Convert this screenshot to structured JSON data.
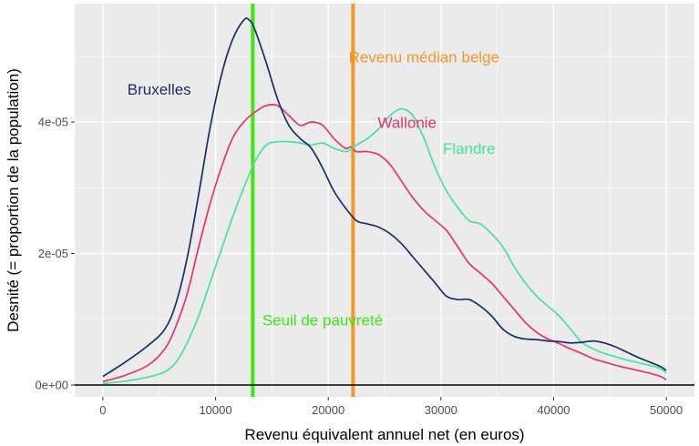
{
  "chart_data": {
    "type": "line",
    "xlabel": "Revenu équivalent annuel net (en euros)",
    "ylabel": "Desnité (= proportion de la population)",
    "xlim": [
      -2500,
      52500
    ],
    "ylim": [
      -1.8e-06,
      5.8e-05
    ],
    "x_ticks": [
      0,
      10000,
      20000,
      30000,
      40000,
      50000
    ],
    "x_tick_labels": [
      "0",
      "10000",
      "20000",
      "30000",
      "40000",
      "50000"
    ],
    "y_ticks": [
      0,
      2e-05,
      4e-05
    ],
    "y_tick_labels": [
      "0e+00",
      "2e-05",
      "4e-05"
    ],
    "grid": true,
    "background": "#ebebeb",
    "series": [
      {
        "name": "Bruxelles",
        "color": "#1b2d6b",
        "x": [
          0,
          2000,
          4000,
          5500,
          6500,
          7500,
          8500,
          9500,
          10500,
          11500,
          12500,
          13000,
          13500,
          14500,
          15500,
          16500,
          17500,
          18500,
          19500,
          20500,
          21500,
          22500,
          23500,
          24500,
          25500,
          26500,
          27500,
          28500,
          29500,
          30500,
          31500,
          32500,
          33500,
          34500,
          35500,
          36500,
          37500,
          38500,
          39500,
          40500,
          41500,
          42500,
          43500,
          44500,
          45500,
          46500,
          47500,
          48500,
          49500,
          50000
        ],
        "y": [
          1.3e-06,
          3.5e-06,
          6e-06,
          8.5e-06,
          1.25e-05,
          1.95e-05,
          2.9e-05,
          3.9e-05,
          4.7e-05,
          5.25e-05,
          5.55e-05,
          5.55e-05,
          5.4e-05,
          4.9e-05,
          4.35e-05,
          3.95e-05,
          3.75e-05,
          3.6e-05,
          3.3e-05,
          2.95e-05,
          2.7e-05,
          2.5e-05,
          2.45e-05,
          2.4e-05,
          2.3e-05,
          2.15e-05,
          1.95e-05,
          1.75e-05,
          1.55e-05,
          1.35e-05,
          1.3e-05,
          1.3e-05,
          1.2e-05,
          1.05e-05,
          8.5e-06,
          7.4e-06,
          7e-06,
          6.9e-06,
          6.7e-06,
          6.6e-06,
          6.4e-06,
          6.5e-06,
          6.7e-06,
          6.4e-06,
          5.8e-06,
          5e-06,
          4.2e-06,
          3.5e-06,
          2.8e-06,
          2.2e-06
        ]
      },
      {
        "name": "Wallonie",
        "color": "#e6336e",
        "x": [
          0,
          2000,
          4000,
          5500,
          6500,
          7500,
          8500,
          9500,
          10500,
          11500,
          12500,
          13500,
          14500,
          15500,
          16500,
          17500,
          18500,
          19500,
          20500,
          21500,
          22000,
          22500,
          23500,
          24500,
          25500,
          26500,
          27500,
          28500,
          29500,
          30500,
          31500,
          32500,
          33500,
          34500,
          35500,
          36500,
          37500,
          38500,
          39500,
          40500,
          41500,
          42500,
          43500,
          44500,
          45500,
          46500,
          47500,
          48500,
          49500,
          50000
        ],
        "y": [
          5e-07,
          1.5e-06,
          3e-06,
          5.5e-06,
          9e-06,
          1.4e-05,
          2.1e-05,
          2.75e-05,
          3.3e-05,
          3.75e-05,
          4e-05,
          4.15e-05,
          4.25e-05,
          4.25e-05,
          4.1e-05,
          3.95e-05,
          4e-05,
          3.95e-05,
          3.75e-05,
          3.6e-05,
          3.62e-05,
          3.55e-05,
          3.55e-05,
          3.5e-05,
          3.35e-05,
          3.1e-05,
          2.85e-05,
          2.65e-05,
          2.5e-05,
          2.35e-05,
          2.1e-05,
          1.85e-05,
          1.7e-05,
          1.55e-05,
          1.35e-05,
          1.15e-05,
          9.5e-06,
          8e-06,
          7e-06,
          6.3e-06,
          5.5e-06,
          4.8e-06,
          4e-06,
          3.5e-06,
          3e-06,
          2.6e-06,
          2.2e-06,
          1.8e-06,
          1.3e-06,
          8e-07
        ]
      },
      {
        "name": "Flandre",
        "color": "#47e398",
        "x": [
          0,
          2000,
          4000,
          5500,
          6500,
          7500,
          8500,
          9500,
          10500,
          11500,
          12500,
          13500,
          14500,
          15500,
          16500,
          17500,
          18500,
          19500,
          20500,
          21500,
          22000,
          22500,
          23500,
          24500,
          25500,
          26500,
          27500,
          28500,
          29500,
          30500,
          31500,
          32500,
          33500,
          34500,
          35500,
          36500,
          37500,
          38500,
          39500,
          40500,
          41500,
          42500,
          43500,
          44500,
          45500,
          46500,
          47500,
          48500,
          49500,
          50000
        ],
        "y": [
          2e-07,
          6e-07,
          1.2e-06,
          2e-06,
          3.5e-06,
          6.5e-06,
          1.05e-05,
          1.55e-05,
          2.05e-05,
          2.55e-05,
          3e-05,
          3.4e-05,
          3.65e-05,
          3.7e-05,
          3.7e-05,
          3.68e-05,
          3.65e-05,
          3.68e-05,
          3.6e-05,
          3.55e-05,
          3.58e-05,
          3.65e-05,
          3.75e-05,
          3.9e-05,
          4.1e-05,
          4.2e-05,
          4.1e-05,
          3.75e-05,
          3.3e-05,
          2.95e-05,
          2.7e-05,
          2.5e-05,
          2.45e-05,
          2.3e-05,
          2.1e-05,
          1.8e-05,
          1.55e-05,
          1.35e-05,
          1.2e-05,
          1.05e-05,
          8.5e-06,
          6.5e-06,
          5.5e-06,
          4.8e-06,
          4.3e-06,
          3.8e-06,
          3.4e-06,
          3e-06,
          2.5e-06,
          1.8e-06
        ]
      }
    ],
    "vlines": [
      {
        "name": "Seuil de pauvreté",
        "x": 13300,
        "color": "#3de614"
      },
      {
        "name": "Revenu médian belge",
        "x": 22200,
        "color": "#f5952a"
      }
    ],
    "hline": {
      "y": 0,
      "color": "#000000"
    },
    "annotations": [
      {
        "text": "Bruxelles",
        "x": 5000,
        "y": 4.48e-05,
        "color": "#1b2d6b"
      },
      {
        "text": "Wallonie",
        "x": 27000,
        "y": 3.97e-05,
        "color": "#e6336e"
      },
      {
        "text": "Flandre",
        "x": 32500,
        "y": 3.58e-05,
        "color": "#47e398"
      },
      {
        "text": "Revenu médian belge",
        "x": 28500,
        "y": 4.97e-05,
        "color": "#f5952a"
      },
      {
        "text": "Seuil de pauvreté",
        "x": 19500,
        "y": 9.7e-06,
        "color": "#3de614"
      }
    ]
  }
}
